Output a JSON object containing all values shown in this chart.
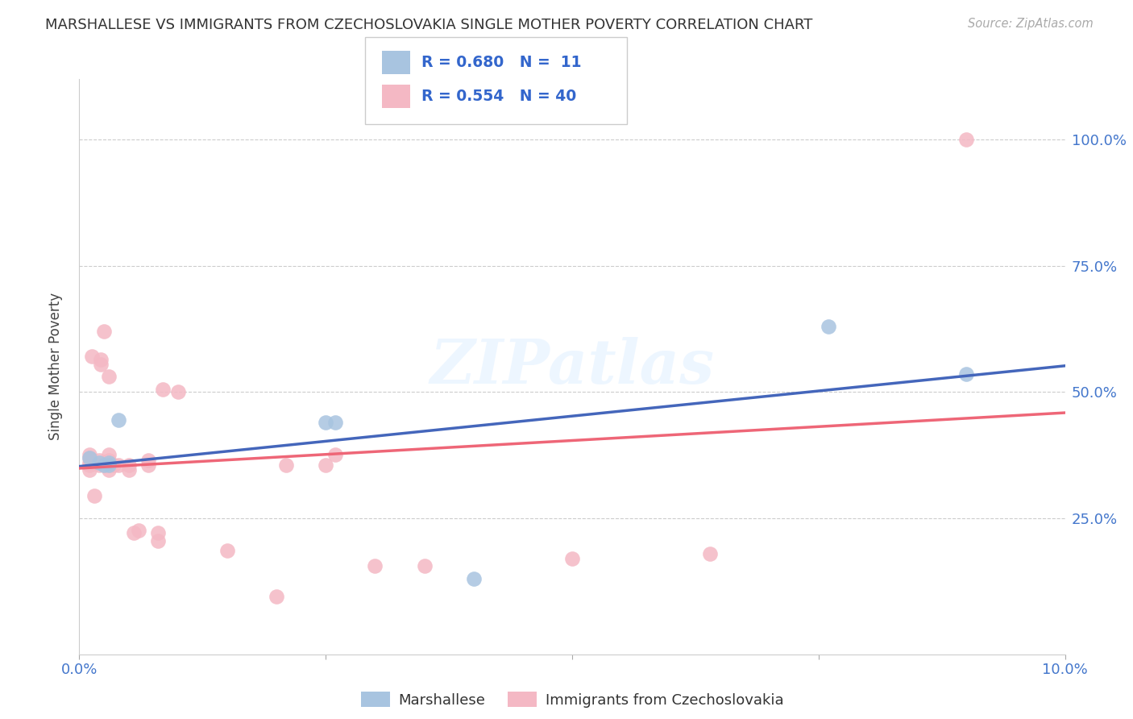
{
  "title": "MARSHALLESE VS IMMIGRANTS FROM CZECHOSLOVAKIA SINGLE MOTHER POVERTY CORRELATION CHART",
  "source": "Source: ZipAtlas.com",
  "ylabel": "Single Mother Poverty",
  "ylabel_right_ticks": [
    "100.0%",
    "75.0%",
    "50.0%",
    "25.0%"
  ],
  "ylabel_right_values": [
    1.0,
    0.75,
    0.5,
    0.25
  ],
  "xlim": [
    0.0,
    0.1
  ],
  "ylim": [
    -0.02,
    1.12
  ],
  "legend_label_blue": "Marshallese",
  "legend_label_pink": "Immigrants from Czechoslovakia",
  "watermark": "ZIPatlas",
  "blue_color": "#A8C4E0",
  "pink_color": "#F4B8C4",
  "blue_line_color": "#4466BB",
  "pink_line_color": "#EE6677",
  "blue_scatter": [
    [
      0.001,
      0.37
    ],
    [
      0.002,
      0.36
    ],
    [
      0.0025,
      0.355
    ],
    [
      0.003,
      0.355
    ],
    [
      0.003,
      0.36
    ],
    [
      0.004,
      0.445
    ],
    [
      0.025,
      0.44
    ],
    [
      0.026,
      0.44
    ],
    [
      0.04,
      0.13
    ],
    [
      0.076,
      0.63
    ],
    [
      0.09,
      0.535
    ]
  ],
  "pink_scatter": [
    [
      0.001,
      0.345
    ],
    [
      0.001,
      0.355
    ],
    [
      0.001,
      0.36
    ],
    [
      0.001,
      0.37
    ],
    [
      0.001,
      0.375
    ],
    [
      0.0013,
      0.57
    ],
    [
      0.0015,
      0.295
    ],
    [
      0.002,
      0.355
    ],
    [
      0.002,
      0.365
    ],
    [
      0.0022,
      0.555
    ],
    [
      0.0022,
      0.565
    ],
    [
      0.0025,
      0.355
    ],
    [
      0.0025,
      0.62
    ],
    [
      0.003,
      0.345
    ],
    [
      0.003,
      0.355
    ],
    [
      0.003,
      0.365
    ],
    [
      0.003,
      0.375
    ],
    [
      0.003,
      0.53
    ],
    [
      0.0035,
      0.355
    ],
    [
      0.004,
      0.355
    ],
    [
      0.005,
      0.345
    ],
    [
      0.005,
      0.355
    ],
    [
      0.0055,
      0.22
    ],
    [
      0.006,
      0.225
    ],
    [
      0.007,
      0.355
    ],
    [
      0.007,
      0.365
    ],
    [
      0.008,
      0.205
    ],
    [
      0.008,
      0.22
    ],
    [
      0.0085,
      0.505
    ],
    [
      0.01,
      0.5
    ],
    [
      0.015,
      0.185
    ],
    [
      0.02,
      0.095
    ],
    [
      0.021,
      0.355
    ],
    [
      0.025,
      0.355
    ],
    [
      0.026,
      0.375
    ],
    [
      0.03,
      0.155
    ],
    [
      0.035,
      0.155
    ],
    [
      0.05,
      0.17
    ],
    [
      0.064,
      0.18
    ],
    [
      0.09,
      1.0
    ]
  ]
}
